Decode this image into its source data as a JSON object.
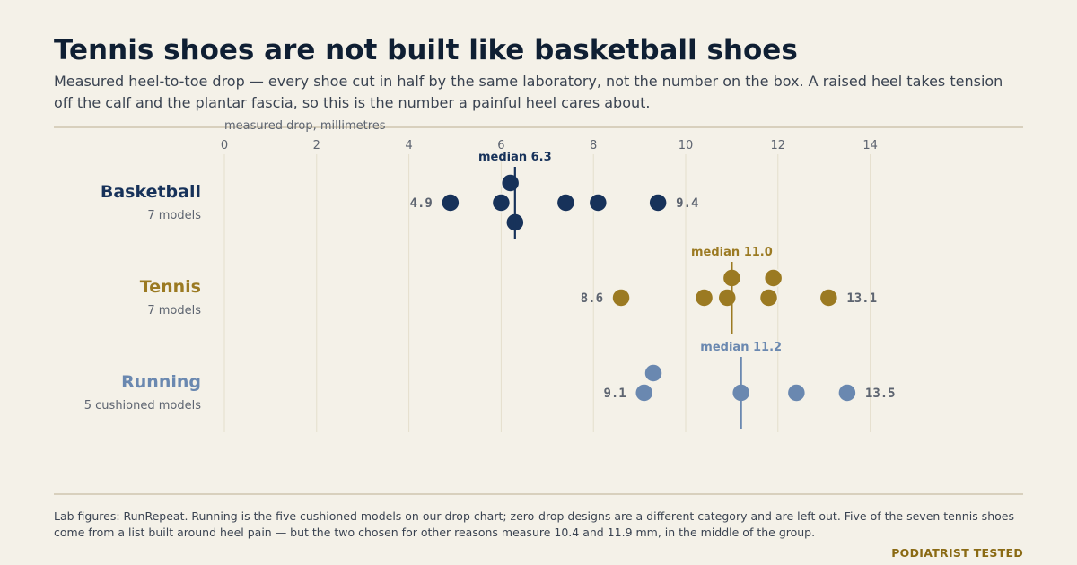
{
  "title": "Tennis shoes are not built like basketball shoes",
  "subtitle": "Measured heel-to-toe drop — every shoe cut in half by the same laboratory, not the number on the box. A raised heel takes tension off the calf and the plantar fascia, so this is the number a painful heel cares about.",
  "footnote": "Lab figures: RunRepeat. Running is the five cushioned models on our drop chart; zero-drop designs are a different category and are left out. Five of the seven tennis shoes come from a list built around heel pain — but the two chosen for other reasons measure 10.4 and 11.9 mm, in the middle of the group.",
  "brand": "PODIATRIST TESTED",
  "chart_data": {
    "type": "scatter",
    "xlabel": "measured drop, millimetres",
    "xlim": [
      0,
      16
    ],
    "xticks": [
      0,
      2,
      4,
      6,
      8,
      10,
      12,
      14
    ],
    "grid": true,
    "series": [
      {
        "name": "Basketball",
        "sublabel": "7 models",
        "color": "#17325a",
        "values": [
          4.9,
          6.0,
          6.2,
          6.3,
          7.4,
          8.1,
          9.4
        ],
        "median": 6.3,
        "median_label": "median 6.3",
        "min_label": "4.9",
        "max_label": "9.4"
      },
      {
        "name": "Tennis",
        "sublabel": "7 models",
        "color": "#9b7a22",
        "values": [
          8.6,
          10.4,
          10.9,
          11.0,
          11.8,
          11.9,
          13.1
        ],
        "median": 11.0,
        "median_label": "median 11.0",
        "min_label": "8.6",
        "max_label": "13.1"
      },
      {
        "name": "Running",
        "sublabel": "5 cushioned models",
        "color": "#6a88b0",
        "values": [
          9.1,
          9.3,
          11.2,
          12.4,
          13.5
        ],
        "median": 11.2,
        "median_label": "median 11.2",
        "min_label": "9.1",
        "max_label": "13.5"
      }
    ]
  }
}
